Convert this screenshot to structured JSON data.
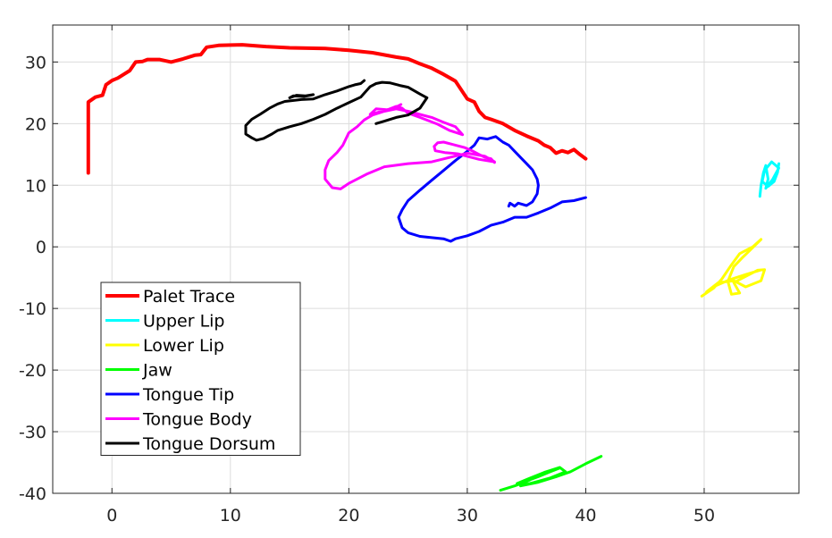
{
  "chart_data": {
    "type": "line",
    "title": "",
    "xlabel": "",
    "ylabel": "",
    "xlim": [
      -5,
      58
    ],
    "ylim": [
      -40,
      36
    ],
    "xticks": [
      0,
      10,
      20,
      30,
      40,
      50
    ],
    "yticks": [
      -40,
      -30,
      -20,
      -10,
      0,
      10,
      20,
      30
    ],
    "grid": true,
    "legend_position": "lower-left",
    "series": [
      {
        "name": "Palet Trace",
        "color": "#ff0000",
        "points": [
          [
            -2,
            12
          ],
          [
            -2,
            23.5
          ],
          [
            -1.4,
            24.3
          ],
          [
            -0.8,
            24.6
          ],
          [
            -0.5,
            26.3
          ],
          [
            0,
            27
          ],
          [
            0.5,
            27.4
          ],
          [
            1,
            28
          ],
          [
            1.5,
            28.6
          ],
          [
            2,
            30
          ],
          [
            2.6,
            30.1
          ],
          [
            3,
            30.4
          ],
          [
            4,
            30.4
          ],
          [
            5,
            30
          ],
          [
            6,
            30.5
          ],
          [
            7,
            31.1
          ],
          [
            7.5,
            31.2
          ],
          [
            8,
            32.4
          ],
          [
            9,
            32.7
          ],
          [
            11,
            32.8
          ],
          [
            13,
            32.5
          ],
          [
            15,
            32.3
          ],
          [
            18,
            32.2
          ],
          [
            20,
            31.9
          ],
          [
            22,
            31.5
          ],
          [
            24,
            30.8
          ],
          [
            25,
            30.5
          ],
          [
            26,
            29.7
          ],
          [
            27,
            29
          ],
          [
            28,
            28
          ],
          [
            29,
            26.9
          ],
          [
            30,
            24
          ],
          [
            30.6,
            23.5
          ],
          [
            31,
            22
          ],
          [
            31.5,
            21
          ],
          [
            32,
            20.7
          ],
          [
            33,
            20
          ],
          [
            34,
            18.9
          ],
          [
            35,
            18
          ],
          [
            36,
            17.2
          ],
          [
            36.5,
            16.5
          ],
          [
            37,
            16.1
          ],
          [
            37.5,
            15.2
          ],
          [
            38,
            15.6
          ],
          [
            38.5,
            15.3
          ],
          [
            39,
            15.8
          ],
          [
            39.5,
            15
          ],
          [
            40,
            14.3
          ]
        ]
      },
      {
        "name": "Upper Lip",
        "color": "#00ffff",
        "points": [
          [
            54.7,
            8.2
          ],
          [
            54.8,
            10
          ],
          [
            55,
            12
          ],
          [
            55.2,
            13.2
          ],
          [
            55.4,
            11
          ],
          [
            55.2,
            9.5
          ],
          [
            55.8,
            11
          ],
          [
            56.3,
            12.8
          ],
          [
            55.7,
            13.8
          ],
          [
            55.1,
            12.4
          ],
          [
            54.9,
            10.6
          ],
          [
            55.4,
            9.8
          ],
          [
            55.9,
            10.6
          ],
          [
            56.2,
            12.1
          ],
          [
            56.3,
            13.5
          ]
        ]
      },
      {
        "name": "Lower Lip",
        "color": "#ffff00",
        "points": [
          [
            49.8,
            -8
          ],
          [
            50.8,
            -6.7
          ],
          [
            51.5,
            -5.2
          ],
          [
            52.2,
            -3.2
          ],
          [
            53,
            -1.1
          ],
          [
            54.1,
            0
          ],
          [
            54.8,
            1.2
          ],
          [
            54,
            -0.3
          ],
          [
            53.2,
            -1.8
          ],
          [
            52.5,
            -3.2
          ],
          [
            52,
            -5.6
          ],
          [
            52.3,
            -7.7
          ],
          [
            53,
            -7.5
          ],
          [
            52.5,
            -5.8
          ],
          [
            53.5,
            -4.8
          ],
          [
            54.5,
            -3.8
          ],
          [
            55.1,
            -3.7
          ],
          [
            54.8,
            -5.5
          ],
          [
            53.5,
            -6.5
          ],
          [
            52.5,
            -5.5
          ],
          [
            51.2,
            -5.8
          ],
          [
            50.2,
            -7.3
          ],
          [
            51,
            -6.3
          ],
          [
            52.2,
            -5.3
          ],
          [
            53.5,
            -4.5
          ],
          [
            54.7,
            -3.8
          ]
        ]
      },
      {
        "name": "Jaw",
        "color": "#00ff00",
        "points": [
          [
            32.8,
            -39.5
          ],
          [
            34,
            -38.8
          ],
          [
            35,
            -38.1
          ],
          [
            36,
            -37.1
          ],
          [
            37,
            -36.3
          ],
          [
            37.8,
            -35.9
          ],
          [
            37,
            -36.5
          ],
          [
            36,
            -37.3
          ],
          [
            35,
            -38
          ],
          [
            34.2,
            -38.4
          ],
          [
            35.2,
            -37.6
          ],
          [
            36.5,
            -36.6
          ],
          [
            37.8,
            -35.8
          ],
          [
            38.3,
            -36.5
          ],
          [
            37,
            -37.5
          ],
          [
            35.5,
            -38.3
          ],
          [
            34.5,
            -38.8
          ],
          [
            36,
            -38.2
          ],
          [
            37.5,
            -37.3
          ],
          [
            38.7,
            -36.5
          ],
          [
            40,
            -35.2
          ],
          [
            41.3,
            -34
          ]
        ]
      },
      {
        "name": "Tongue Tip",
        "color": "#0000ff",
        "points": [
          [
            40,
            8
          ],
          [
            39,
            7.5
          ],
          [
            38,
            7.3
          ],
          [
            37,
            6.3
          ],
          [
            36,
            5.5
          ],
          [
            35,
            4.8
          ],
          [
            34,
            4.8
          ],
          [
            33,
            4
          ],
          [
            32,
            3.5
          ],
          [
            31,
            2.5
          ],
          [
            30,
            1.8
          ],
          [
            29,
            1.3
          ],
          [
            28.6,
            0.9
          ],
          [
            28,
            1.3
          ],
          [
            27,
            1.5
          ],
          [
            26,
            1.7
          ],
          [
            25,
            2.3
          ],
          [
            24.5,
            3.1
          ],
          [
            24.2,
            4.8
          ],
          [
            24.5,
            6
          ],
          [
            25,
            7.5
          ],
          [
            26,
            9.2
          ],
          [
            27,
            10.8
          ],
          [
            28,
            12.4
          ],
          [
            29,
            14
          ],
          [
            30,
            15.5
          ],
          [
            30.6,
            16.5
          ],
          [
            31,
            17.7
          ],
          [
            31.7,
            17.5
          ],
          [
            32.4,
            17.9
          ],
          [
            32.8,
            17.3
          ],
          [
            33,
            17
          ],
          [
            33.5,
            16.5
          ],
          [
            34,
            15.5
          ],
          [
            34.5,
            14.5
          ],
          [
            35,
            13.5
          ],
          [
            35.5,
            12.5
          ],
          [
            35.9,
            11
          ],
          [
            36,
            10
          ],
          [
            35.9,
            8.6
          ],
          [
            35.5,
            7.3
          ],
          [
            35,
            6.7
          ],
          [
            34.3,
            7.1
          ],
          [
            34,
            6.6
          ],
          [
            33.6,
            7.1
          ],
          [
            33.5,
            6.6
          ]
        ]
      },
      {
        "name": "Tongue Body",
        "color": "#ff00ff",
        "points": [
          [
            32.3,
            13.7
          ],
          [
            32,
            14.3
          ],
          [
            31.5,
            14.5
          ],
          [
            31,
            15
          ],
          [
            30.5,
            15.5
          ],
          [
            29.8,
            16.1
          ],
          [
            29,
            16.5
          ],
          [
            28,
            17
          ],
          [
            27.5,
            16.9
          ],
          [
            27.2,
            16.3
          ],
          [
            27.3,
            15.6
          ],
          [
            28.1,
            15.3
          ],
          [
            29.2,
            15.1
          ],
          [
            30,
            14.7
          ],
          [
            31,
            14.2
          ],
          [
            32.3,
            13.8
          ],
          [
            31.5,
            14.7
          ],
          [
            30,
            15.2
          ],
          [
            28.5,
            14.5
          ],
          [
            27,
            13.8
          ],
          [
            25,
            13.5
          ],
          [
            23,
            13
          ],
          [
            21.5,
            11.8
          ],
          [
            20,
            10.3
          ],
          [
            19.3,
            9.4
          ],
          [
            18.6,
            9.6
          ],
          [
            18,
            11
          ],
          [
            18,
            12.5
          ],
          [
            18.3,
            14
          ],
          [
            19,
            15.3
          ],
          [
            19.5,
            16.5
          ],
          [
            20,
            18.5
          ],
          [
            20.7,
            19.5
          ],
          [
            21.3,
            20.6
          ],
          [
            22,
            21.4
          ],
          [
            23,
            22
          ],
          [
            24,
            22.4
          ],
          [
            25,
            22
          ],
          [
            26,
            21.5
          ],
          [
            27,
            21
          ],
          [
            28,
            20.2
          ],
          [
            29,
            19.5
          ],
          [
            29.6,
            18.2
          ],
          [
            28.5,
            18.9
          ],
          [
            27.5,
            19.9
          ],
          [
            26,
            21
          ],
          [
            25,
            21.7
          ],
          [
            24.5,
            22.5
          ],
          [
            24,
            22.8
          ],
          [
            23.2,
            22.2
          ],
          [
            22.4,
            21.8
          ],
          [
            21.8,
            21.5
          ],
          [
            22.3,
            22.4
          ],
          [
            23.5,
            22.2
          ],
          [
            24.4,
            23.1
          ]
        ]
      },
      {
        "name": "Tongue Dorsum",
        "color": "#000000",
        "points": [
          [
            22.3,
            20
          ],
          [
            23,
            20.4
          ],
          [
            24,
            21
          ],
          [
            25,
            21.4
          ],
          [
            26,
            22.5
          ],
          [
            26.6,
            24.2
          ],
          [
            26,
            24.8
          ],
          [
            25,
            25.9
          ],
          [
            24.3,
            26.2
          ],
          [
            23.5,
            26.6
          ],
          [
            22.8,
            26.7
          ],
          [
            22.3,
            26.5
          ],
          [
            21.8,
            26
          ],
          [
            21,
            24.3
          ],
          [
            20,
            23.4
          ],
          [
            19,
            22.5
          ],
          [
            18,
            21.5
          ],
          [
            17,
            20.7
          ],
          [
            16,
            20
          ],
          [
            15,
            19.5
          ],
          [
            14,
            18.9
          ],
          [
            13.5,
            18.3
          ],
          [
            12.8,
            17.6
          ],
          [
            12.2,
            17.3
          ],
          [
            11.8,
            17.7
          ],
          [
            11.3,
            18.3
          ],
          [
            11.3,
            19.7
          ],
          [
            11.8,
            20.7
          ],
          [
            12.5,
            21.5
          ],
          [
            13.3,
            22.5
          ],
          [
            14,
            23.2
          ],
          [
            14.6,
            23.6
          ],
          [
            16,
            23.9
          ],
          [
            17,
            24
          ],
          [
            18,
            24.7
          ],
          [
            19,
            25.3
          ],
          [
            20,
            26
          ],
          [
            20.5,
            26.3
          ],
          [
            21,
            26.5
          ],
          [
            21.3,
            27
          ]
        ]
      },
      {
        "name": "",
        "color": "#000000",
        "points": [
          [
            15,
            24.2
          ],
          [
            15.6,
            24.6
          ],
          [
            16.3,
            24.5
          ],
          [
            17,
            24.7
          ],
          [
            16.2,
            24.4
          ],
          [
            15.3,
            24.5
          ],
          [
            15.1,
            24.3
          ]
        ]
      }
    ]
  }
}
